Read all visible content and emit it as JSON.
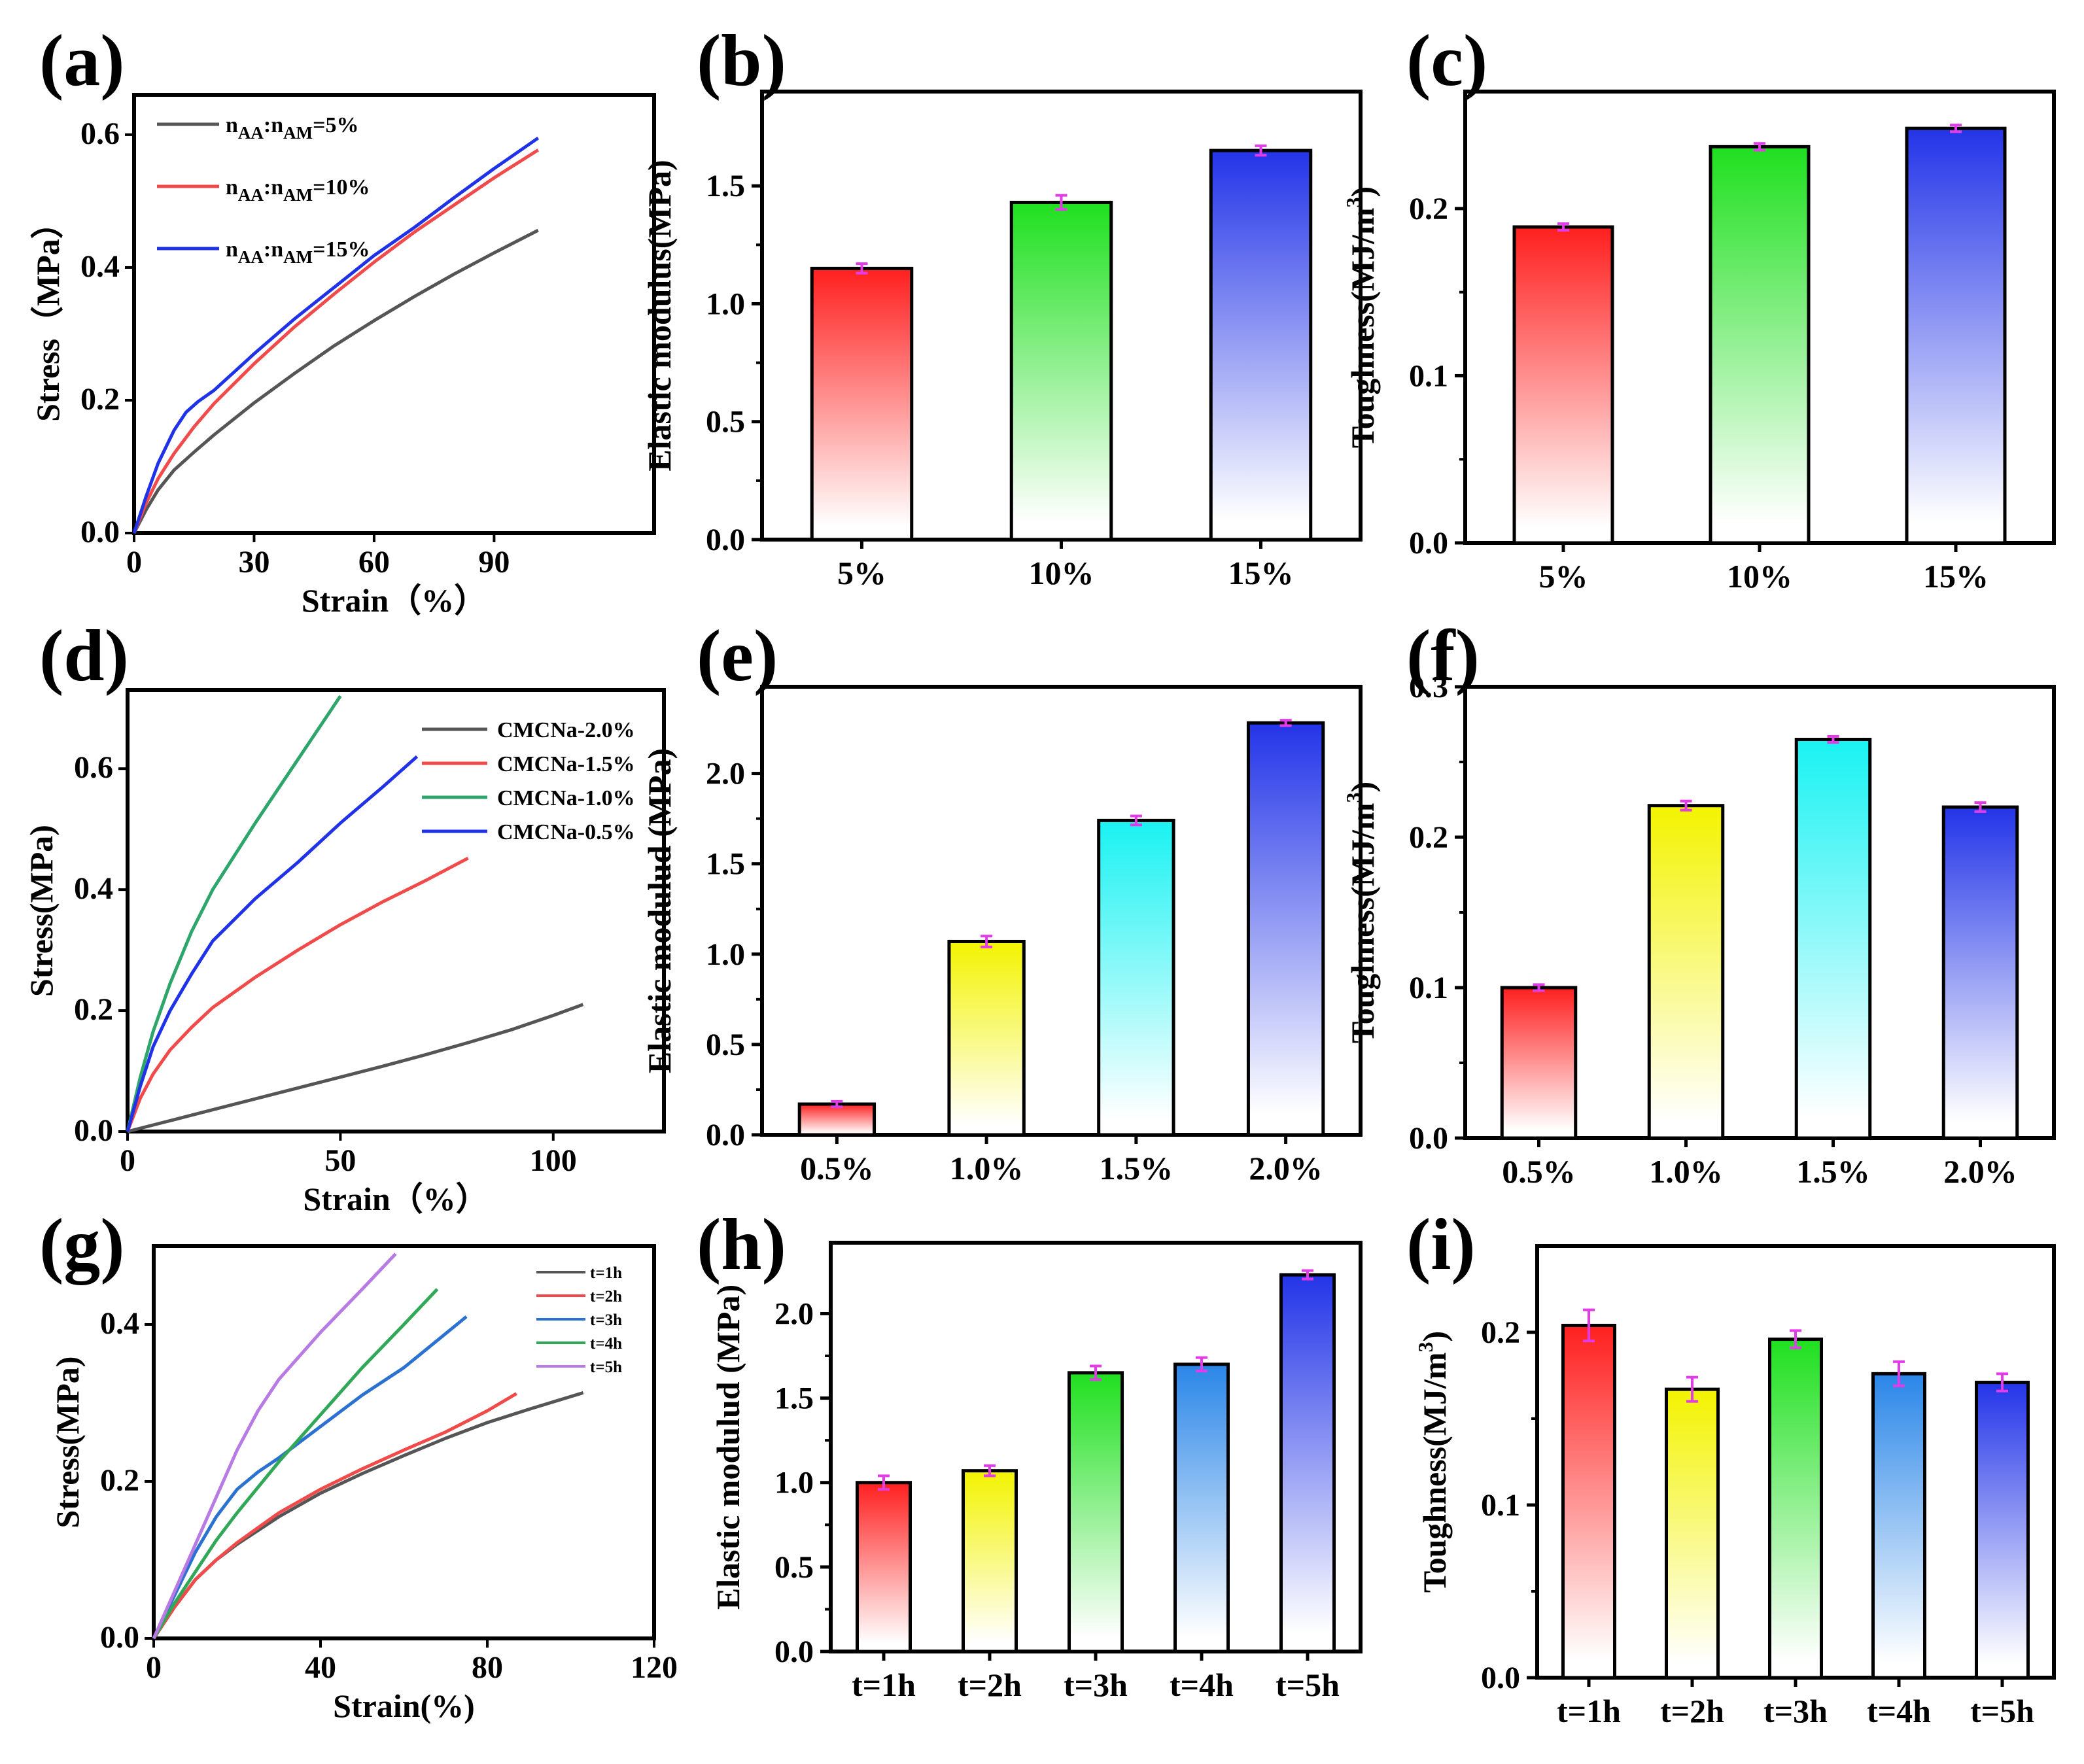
{
  "figure": {
    "panels": [
      "(a)",
      "(b)",
      "(c)",
      "(d)",
      "(e)",
      "(f)",
      "(g)",
      "(h)",
      "(i)"
    ]
  },
  "colors": {
    "red": "#ff1f1f",
    "green": "#1fe01f",
    "blue": "#2334e8",
    "yellow": "#f3f300",
    "cyan": "#19f2f2",
    "sky": "#2a86e8",
    "gray": "#555555",
    "line_red": "#f14a4a",
    "line_blue": "#1f32e8",
    "line_green": "#2ea56a",
    "line_blue2": "#2b72d0",
    "line_green2": "#30a858",
    "line_purple": "#b77be3",
    "errbar": "#e33be8"
  },
  "chart_data": [
    {
      "panel": "(a)",
      "type": "line",
      "title": "",
      "xlabel": "Strain（%）",
      "ylabel": "Stress（MPa）",
      "xlim": [
        0,
        130
      ],
      "ylim": [
        0,
        0.66
      ],
      "xticks": [
        "0",
        "30",
        "60",
        "90"
      ],
      "yticks": [
        "0.0",
        "0.2",
        "0.4",
        "0.6"
      ],
      "legend": "top-left",
      "series": [
        {
          "name": "n_AA:n_AM=5%",
          "label_main": "n",
          "label_sub1": "AA",
          "label_mid": ":n",
          "label_sub2": "AM",
          "label_end": "=5%",
          "color": "#555555",
          "x": [
            0,
            3,
            6,
            10,
            15,
            20,
            30,
            40,
            50,
            60,
            70,
            80,
            90,
            101
          ],
          "y": [
            0,
            0.035,
            0.065,
            0.095,
            0.122,
            0.148,
            0.196,
            0.24,
            0.282,
            0.32,
            0.356,
            0.39,
            0.422,
            0.456
          ]
        },
        {
          "name": "n_AA:n_AM=10%",
          "label_main": "n",
          "label_sub1": "AA",
          "label_mid": ":n",
          "label_sub2": "AM",
          "label_end": "=10%",
          "color": "#f14a4a",
          "x": [
            0,
            3,
            6,
            10,
            15,
            20,
            30,
            40,
            50,
            60,
            70,
            80,
            90,
            101
          ],
          "y": [
            0,
            0.045,
            0.082,
            0.12,
            0.16,
            0.195,
            0.255,
            0.31,
            0.36,
            0.408,
            0.453,
            0.494,
            0.535,
            0.577
          ]
        },
        {
          "name": "n_AA:n_AM=15%",
          "label_main": "n",
          "label_sub1": "AA",
          "label_mid": ":n",
          "label_sub2": "AM",
          "label_end": "=15%",
          "color": "#1f32e8",
          "x": [
            0,
            3,
            6,
            10,
            13,
            16,
            20,
            30,
            40,
            50,
            60,
            70,
            80,
            90,
            101
          ],
          "y": [
            0,
            0.055,
            0.105,
            0.155,
            0.182,
            0.198,
            0.215,
            0.27,
            0.322,
            0.37,
            0.418,
            0.46,
            0.505,
            0.549,
            0.595
          ]
        }
      ]
    },
    {
      "panel": "(b)",
      "type": "bar",
      "ylabel": "Elastic modulus(MPa)",
      "xlabel": "",
      "ylim": [
        0,
        1.9
      ],
      "yticks": [
        "0.0",
        "0.5",
        "1.0",
        "1.5"
      ],
      "categories": [
        "5%",
        "10%",
        "15%"
      ],
      "values": [
        1.15,
        1.43,
        1.65
      ],
      "errors": [
        0.02,
        0.03,
        0.02
      ],
      "colors": [
        "#ff1f1f",
        "#1fe01f",
        "#2334e8"
      ]
    },
    {
      "panel": "(c)",
      "type": "bar",
      "ylabel": "Toughness(MJ/m",
      "ylabel_sup": "3",
      "ylabel_end": ")",
      "xlabel": "",
      "ylim": [
        0,
        0.27
      ],
      "yticks": [
        "0.0",
        "0.1",
        "0.2"
      ],
      "categories": [
        "5%",
        "10%",
        "15%"
      ],
      "values": [
        0.189,
        0.237,
        0.248
      ],
      "errors": [
        0.002,
        0.002,
        0.002
      ],
      "colors": [
        "#ff1f1f",
        "#1fe01f",
        "#2334e8"
      ]
    },
    {
      "panel": "(d)",
      "type": "line",
      "title": "",
      "xlabel": "Strain（%）",
      "ylabel": "Stress(MPa)",
      "xlim": [
        0,
        126
      ],
      "ylim": [
        0,
        0.73
      ],
      "xticks": [
        "0",
        "50",
        "100"
      ],
      "yticks": [
        "0.0",
        "0.2",
        "0.4",
        "0.6"
      ],
      "legend": "top-right",
      "series": [
        {
          "name": "CMCNa-2.0%",
          "color": "#555555",
          "x": [
            0,
            10,
            20,
            30,
            40,
            50,
            60,
            70,
            80,
            90,
            100,
            107
          ],
          "y": [
            0,
            0.018,
            0.036,
            0.054,
            0.072,
            0.09,
            0.108,
            0.127,
            0.147,
            0.168,
            0.192,
            0.21
          ]
        },
        {
          "name": "CMCNa-1.5%",
          "color": "#f14a4a",
          "x": [
            0,
            3,
            6,
            10,
            15,
            20,
            30,
            40,
            50,
            60,
            70,
            80
          ],
          "y": [
            0,
            0.055,
            0.095,
            0.135,
            0.172,
            0.205,
            0.255,
            0.3,
            0.342,
            0.38,
            0.415,
            0.452
          ]
        },
        {
          "name": "CMCNa-1.0%",
          "color": "#2ea56a",
          "x": [
            0,
            3,
            6,
            10,
            15,
            20,
            30,
            40,
            50
          ],
          "y": [
            0,
            0.09,
            0.165,
            0.245,
            0.33,
            0.4,
            0.51,
            0.615,
            0.72
          ]
        },
        {
          "name": "CMCNa-0.5%",
          "color": "#1f32e8",
          "x": [
            0,
            3,
            6,
            10,
            15,
            20,
            30,
            40,
            50,
            60,
            68
          ],
          "y": [
            0,
            0.075,
            0.14,
            0.2,
            0.26,
            0.315,
            0.385,
            0.445,
            0.51,
            0.57,
            0.62
          ]
        }
      ]
    },
    {
      "panel": "(e)",
      "type": "bar",
      "ylabel": "Elastic modulud (MPa)",
      "xlabel": "",
      "ylim": [
        0,
        2.48
      ],
      "yticks": [
        "0.0",
        "0.5",
        "1.0",
        "1.5",
        "2.0"
      ],
      "categories": [
        "0.5%",
        "1.0%",
        "1.5%",
        "2.0%"
      ],
      "values": [
        0.17,
        1.07,
        1.74,
        2.28
      ],
      "errors": [
        0.015,
        0.03,
        0.025,
        0.015
      ],
      "colors": [
        "#ff1f1f",
        "#f3f300",
        "#19f2f2",
        "#2334e8"
      ]
    },
    {
      "panel": "(f)",
      "type": "bar",
      "ylabel": "Toughness(MJ/m",
      "ylabel_sup": "3",
      "ylabel_end": ")",
      "xlabel": "",
      "ylim": [
        0,
        0.3
      ],
      "yticks": [
        "0.0",
        "0.1",
        "0.2",
        "0.3"
      ],
      "categories": [
        "0.5%",
        "1.0%",
        "1.5%",
        "2.0%"
      ],
      "values": [
        0.1,
        0.221,
        0.265,
        0.22
      ],
      "errors": [
        0.002,
        0.003,
        0.002,
        0.003
      ],
      "colors": [
        "#ff1f1f",
        "#f3f300",
        "#19f2f2",
        "#2334e8"
      ]
    },
    {
      "panel": "(g)",
      "type": "line",
      "title": "",
      "xlabel": "Strain(%)",
      "ylabel": "Stress(MPa)",
      "xlim": [
        0,
        120
      ],
      "ylim": [
        0,
        0.5
      ],
      "xticks": [
        "0",
        "40",
        "80",
        "120"
      ],
      "yticks": [
        "0.0",
        "0.2",
        "0.4"
      ],
      "legend": "top-right",
      "series": [
        {
          "name": "t=1h",
          "color": "#555555",
          "x": [
            0,
            5,
            10,
            15,
            20,
            30,
            40,
            50,
            60,
            70,
            80,
            90,
            103
          ],
          "y": [
            0,
            0.04,
            0.075,
            0.1,
            0.12,
            0.155,
            0.185,
            0.21,
            0.233,
            0.255,
            0.275,
            0.292,
            0.313
          ]
        },
        {
          "name": "t=2h",
          "color": "#f14a4a",
          "x": [
            0,
            5,
            10,
            15,
            20,
            30,
            40,
            50,
            60,
            70,
            80,
            87
          ],
          "y": [
            0,
            0.04,
            0.075,
            0.1,
            0.122,
            0.16,
            0.19,
            0.216,
            0.24,
            0.263,
            0.29,
            0.312
          ]
        },
        {
          "name": "t=3h",
          "color": "#2b72d0",
          "x": [
            0,
            5,
            10,
            15,
            20,
            25,
            30,
            40,
            50,
            60,
            75
          ],
          "y": [
            0,
            0.055,
            0.11,
            0.155,
            0.19,
            0.212,
            0.23,
            0.27,
            0.31,
            0.345,
            0.41
          ]
        },
        {
          "name": "t=4h",
          "color": "#30a858",
          "x": [
            0,
            5,
            10,
            15,
            20,
            30,
            40,
            50,
            60,
            68
          ],
          "y": [
            0,
            0.045,
            0.085,
            0.125,
            0.16,
            0.225,
            0.285,
            0.345,
            0.4,
            0.445
          ]
        },
        {
          "name": "t=5h",
          "color": "#b77be3",
          "x": [
            0,
            5,
            10,
            15,
            20,
            25,
            30,
            40,
            50,
            58
          ],
          "y": [
            0,
            0.06,
            0.12,
            0.18,
            0.24,
            0.29,
            0.33,
            0.39,
            0.445,
            0.49
          ]
        }
      ]
    },
    {
      "panel": "(h)",
      "type": "bar",
      "ylabel": "Elastic modulud (MPa)",
      "xlabel": "",
      "ylim": [
        0,
        2.42
      ],
      "yticks": [
        "0.0",
        "0.5",
        "1.0",
        "1.5",
        "2.0"
      ],
      "categories": [
        "t=1h",
        "t=2h",
        "t=3h",
        "t=4h",
        "t=5h"
      ],
      "values": [
        1.0,
        1.07,
        1.65,
        1.7,
        2.23
      ],
      "errors": [
        0.04,
        0.03,
        0.04,
        0.04,
        0.025
      ],
      "colors": [
        "#ff1f1f",
        "#f3f300",
        "#1fe01f",
        "#2a86e8",
        "#2334e8"
      ]
    },
    {
      "panel": "(i)",
      "type": "bar",
      "ylabel": "Toughness(MJ/m",
      "ylabel_sup": "3",
      "ylabel_end": ")",
      "xlabel": "",
      "ylim": [
        0,
        0.25
      ],
      "yticks": [
        "0.0",
        "0.1",
        "0.2"
      ],
      "categories": [
        "t=1h",
        "t=2h",
        "t=3h",
        "t=4h",
        "t=5h"
      ],
      "values": [
        0.204,
        0.167,
        0.196,
        0.176,
        0.171
      ],
      "errors": [
        0.009,
        0.007,
        0.005,
        0.007,
        0.005
      ],
      "colors": [
        "#ff1f1f",
        "#f3f300",
        "#1fe01f",
        "#2a86e8",
        "#2334e8"
      ]
    }
  ]
}
